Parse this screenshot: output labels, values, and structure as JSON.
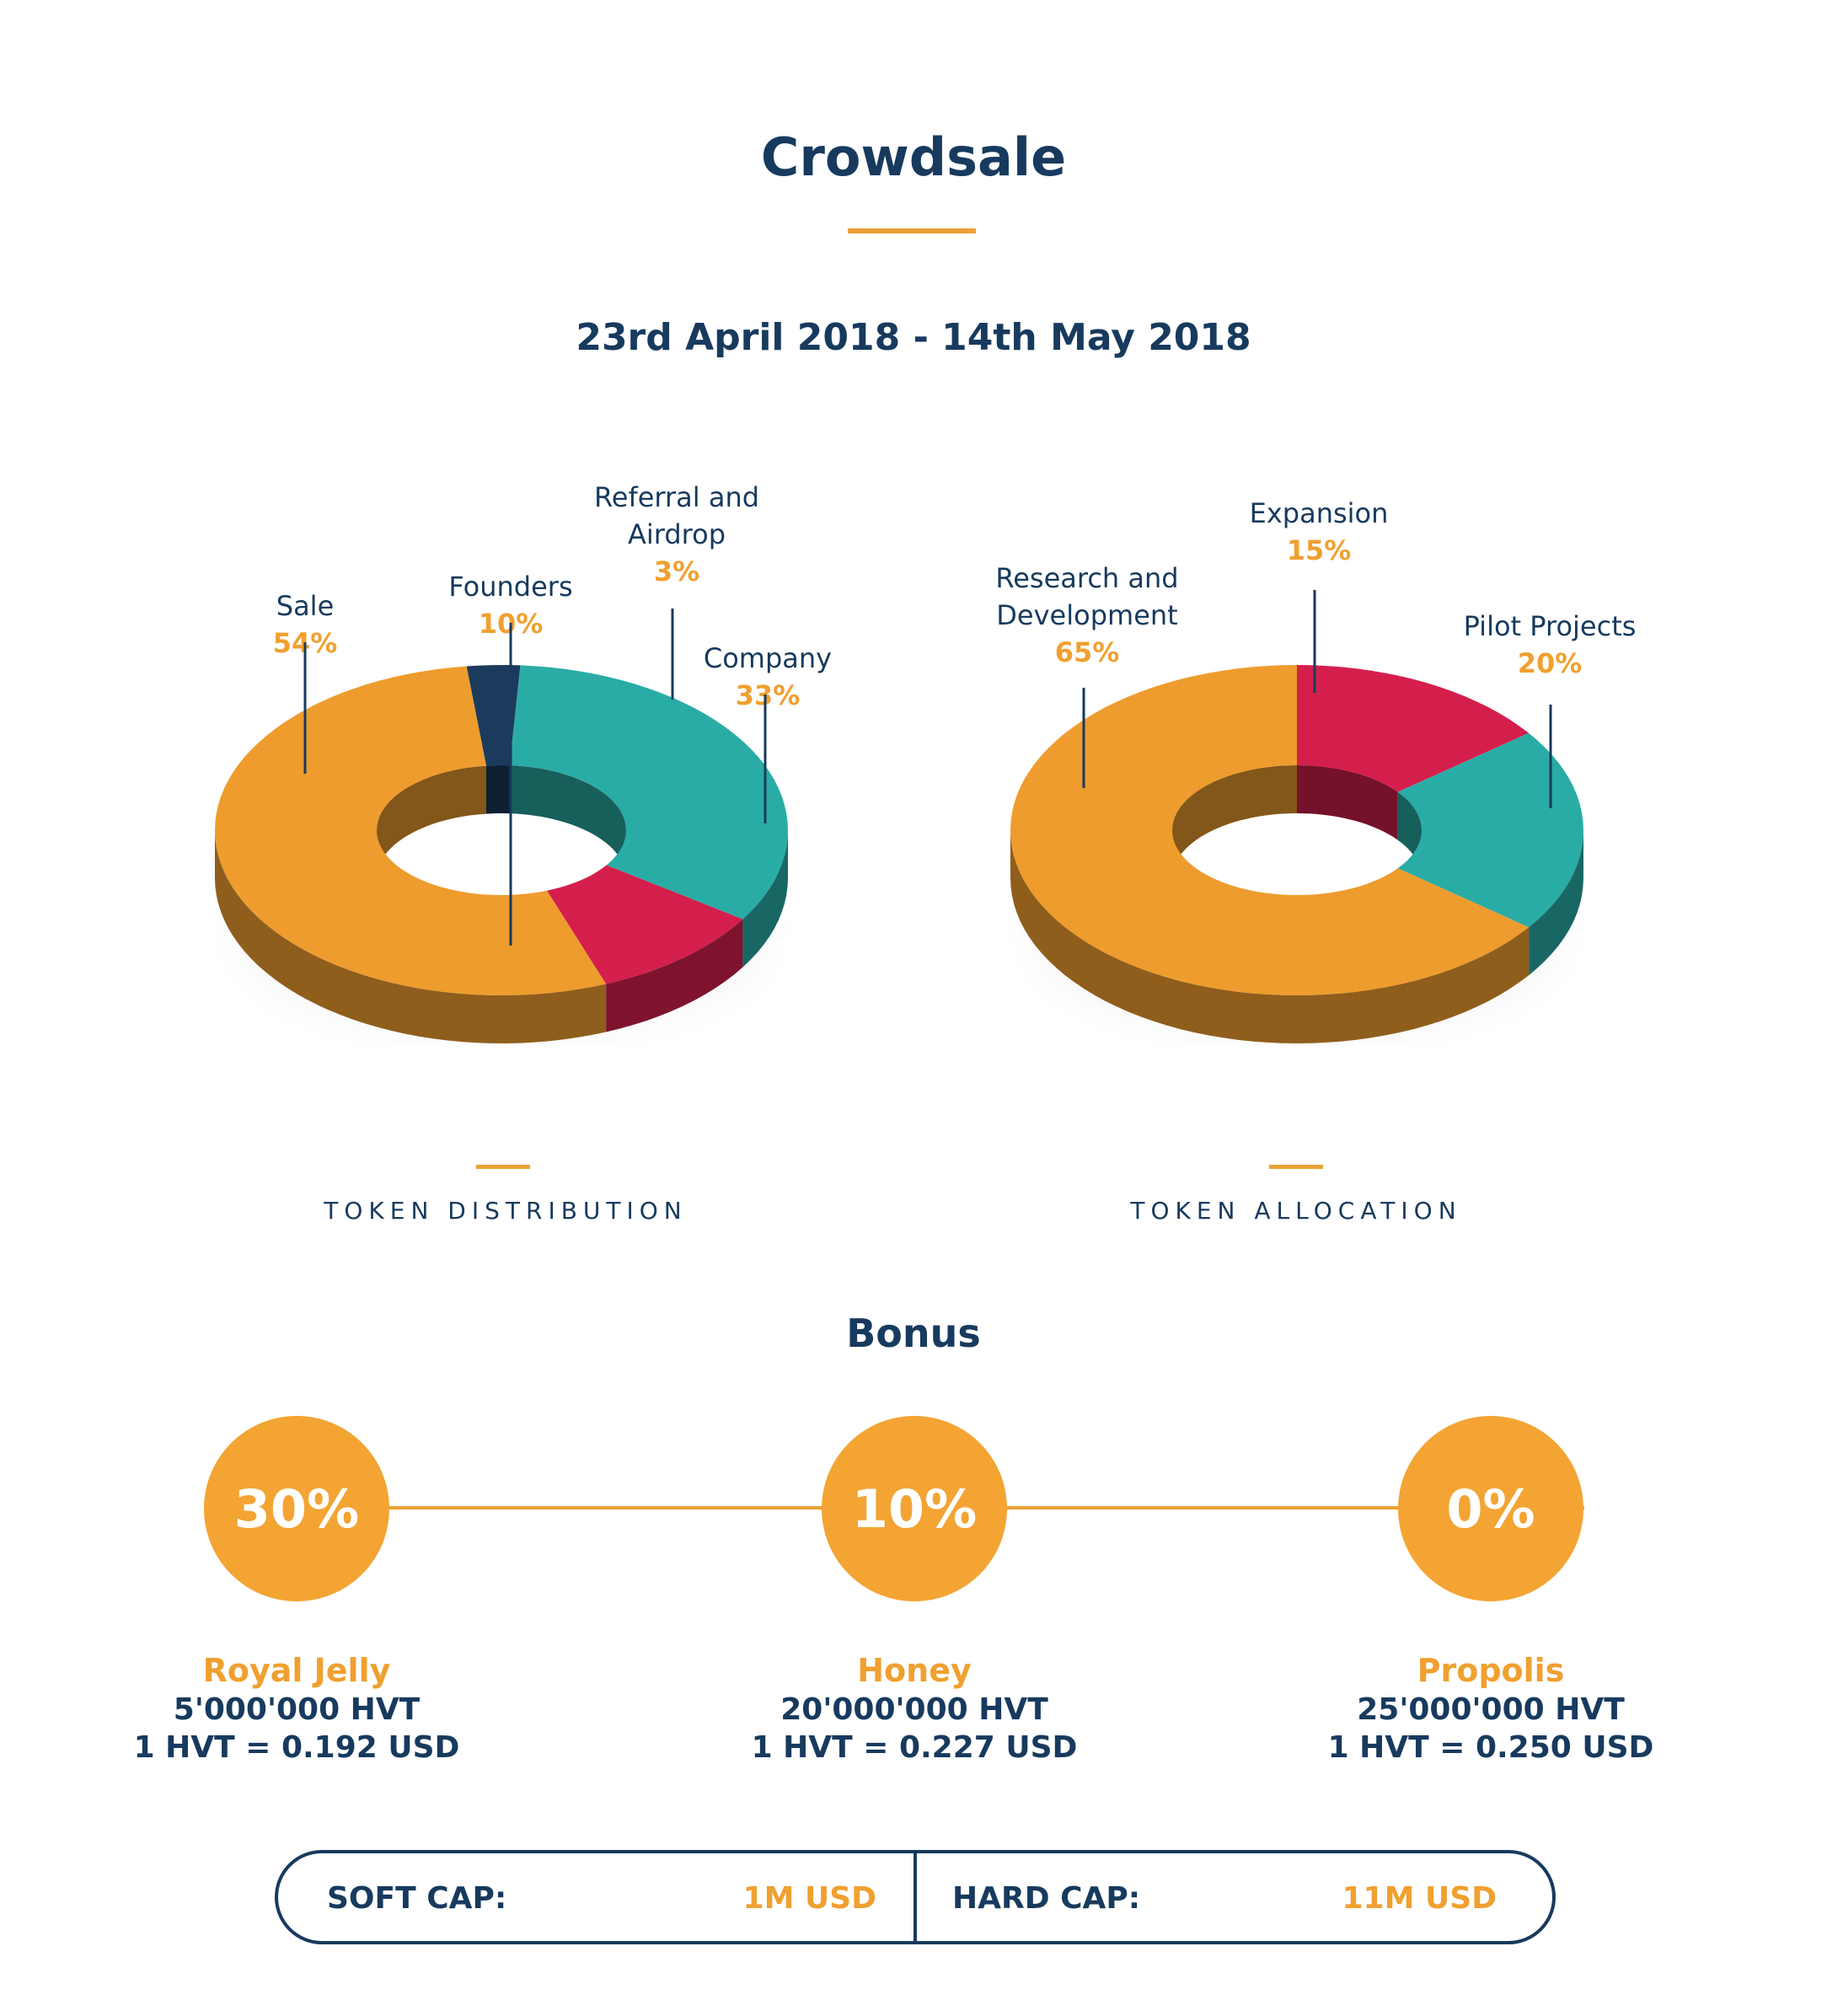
{
  "page": {
    "title": "Crowdsale",
    "dates": "23rd April 2018 - 14th May 2018"
  },
  "chart_data": [
    {
      "type": "pie",
      "title": "TOKEN DISTRIBUTION",
      "slices": [
        {
          "label": "Sale",
          "value": 54,
          "display": "54%",
          "color": "#ee9c2e"
        },
        {
          "label": "Founders",
          "value": 10,
          "display": "10%",
          "color": "#d41f4d"
        },
        {
          "label": "Company",
          "value": 33,
          "display": "33%",
          "color": "#2aaca6"
        },
        {
          "label": "Referral and Airdrop",
          "value": 3,
          "display": "3%",
          "color": "#1c3b5c"
        }
      ]
    },
    {
      "type": "pie",
      "title": "TOKEN ALLOCATION",
      "slices": [
        {
          "label": "Research and Development",
          "value": 65,
          "display": "65%",
          "color": "#ee9c2e"
        },
        {
          "label": "Expansion",
          "value": 15,
          "display": "15%",
          "color": "#d41f4d"
        },
        {
          "label": "Pilot Projects",
          "value": 20,
          "display": "20%",
          "color": "#2aaca6"
        }
      ]
    }
  ],
  "bonus": {
    "title": "Bonus",
    "tiers": [
      {
        "bonus": "30%",
        "name": "Royal Jelly",
        "amount": "5'000'000 HVT",
        "price": "1 HVT = 0.192 USD"
      },
      {
        "bonus": "10%",
        "name": "Honey",
        "amount": "20'000'000 HVT",
        "price": "1 HVT = 0.227 USD"
      },
      {
        "bonus": "0%",
        "name": "Propolis",
        "amount": "25'000'000 HVT",
        "price": "1 HVT = 0.250 USD"
      }
    ]
  },
  "caps": {
    "soft_label": "SOFT CAP:",
    "soft_value": "1M USD",
    "hard_label": "HARD CAP:",
    "hard_value": "11M USD"
  },
  "colors": {
    "navy": "#173a5e",
    "accent": "#f0a030"
  }
}
